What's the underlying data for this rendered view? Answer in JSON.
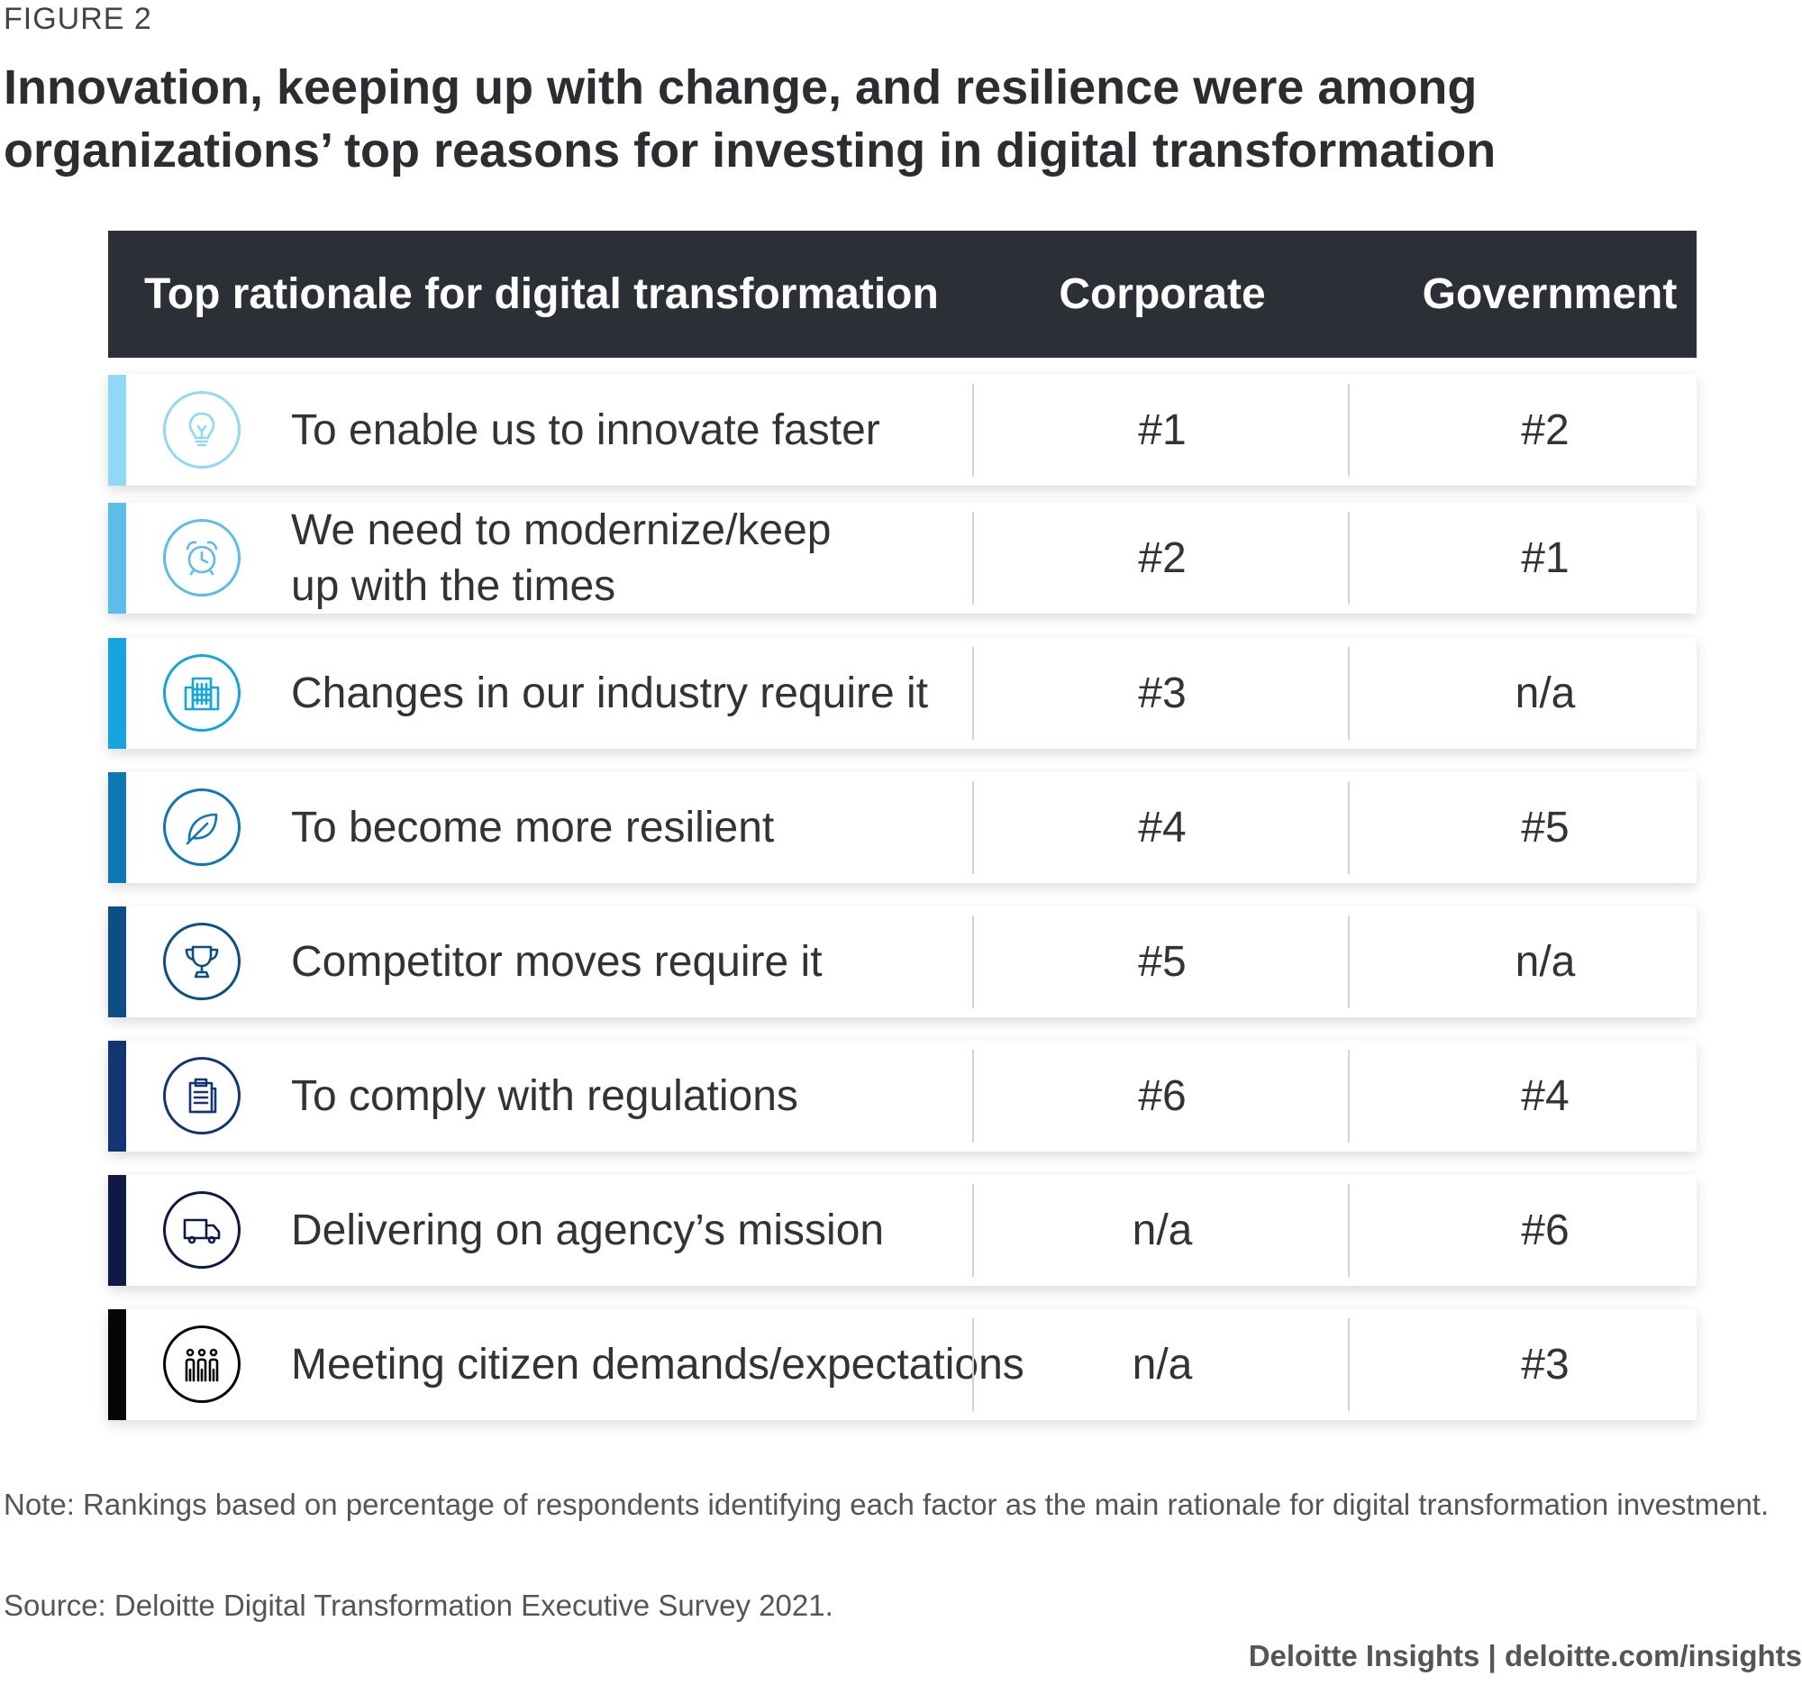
{
  "figure_label": "FIGURE 2",
  "title": "Innovation, keeping up with change, and resilience were among organizations’ top reasons for investing in digital transformation",
  "table": {
    "headers": {
      "rationale": "Top rationale for digital transformation",
      "corporate": "Corporate",
      "government": "Government"
    },
    "rows": [
      {
        "label": "To enable us to innovate faster",
        "corporate": "#1",
        "government": "#2",
        "icon": "lightbulb-icon",
        "color": "#8fd9f7"
      },
      {
        "label": "We need to modernize/keep up with the times",
        "corporate": "#2",
        "government": "#1",
        "icon": "alarm-clock-icon",
        "color": "#5bbde8"
      },
      {
        "label": "Changes in our industry require it",
        "corporate": "#3",
        "government": "n/a",
        "icon": "building-icon",
        "color": "#15a5de"
      },
      {
        "label": "To become more resilient",
        "corporate": "#4",
        "government": "#5",
        "icon": "leaf-icon",
        "color": "#0d78b5"
      },
      {
        "label": "Competitor moves require it",
        "corporate": "#5",
        "government": "n/a",
        "icon": "trophy-icon",
        "color": "#0c4f85"
      },
      {
        "label": "To comply with regulations",
        "corporate": "#6",
        "government": "#4",
        "icon": "clipboard-icon",
        "color": "#133573"
      },
      {
        "label": "Delivering on agency’s mission",
        "corporate": "n/a",
        "government": "#6",
        "icon": "truck-icon",
        "color": "#0e1a45"
      },
      {
        "label": "Meeting citizen demands/expectations",
        "corporate": "n/a",
        "government": "#3",
        "icon": "people-icon",
        "color": "#050505"
      }
    ]
  },
  "note": "Note: Rankings based on percentage of respondents identifying each factor as the main rationale for digital transformation investment.",
  "source": "Source: Deloitte Digital Transformation Executive Survey 2021.",
  "footer": "Deloitte Insights | deloitte.com/insights"
}
